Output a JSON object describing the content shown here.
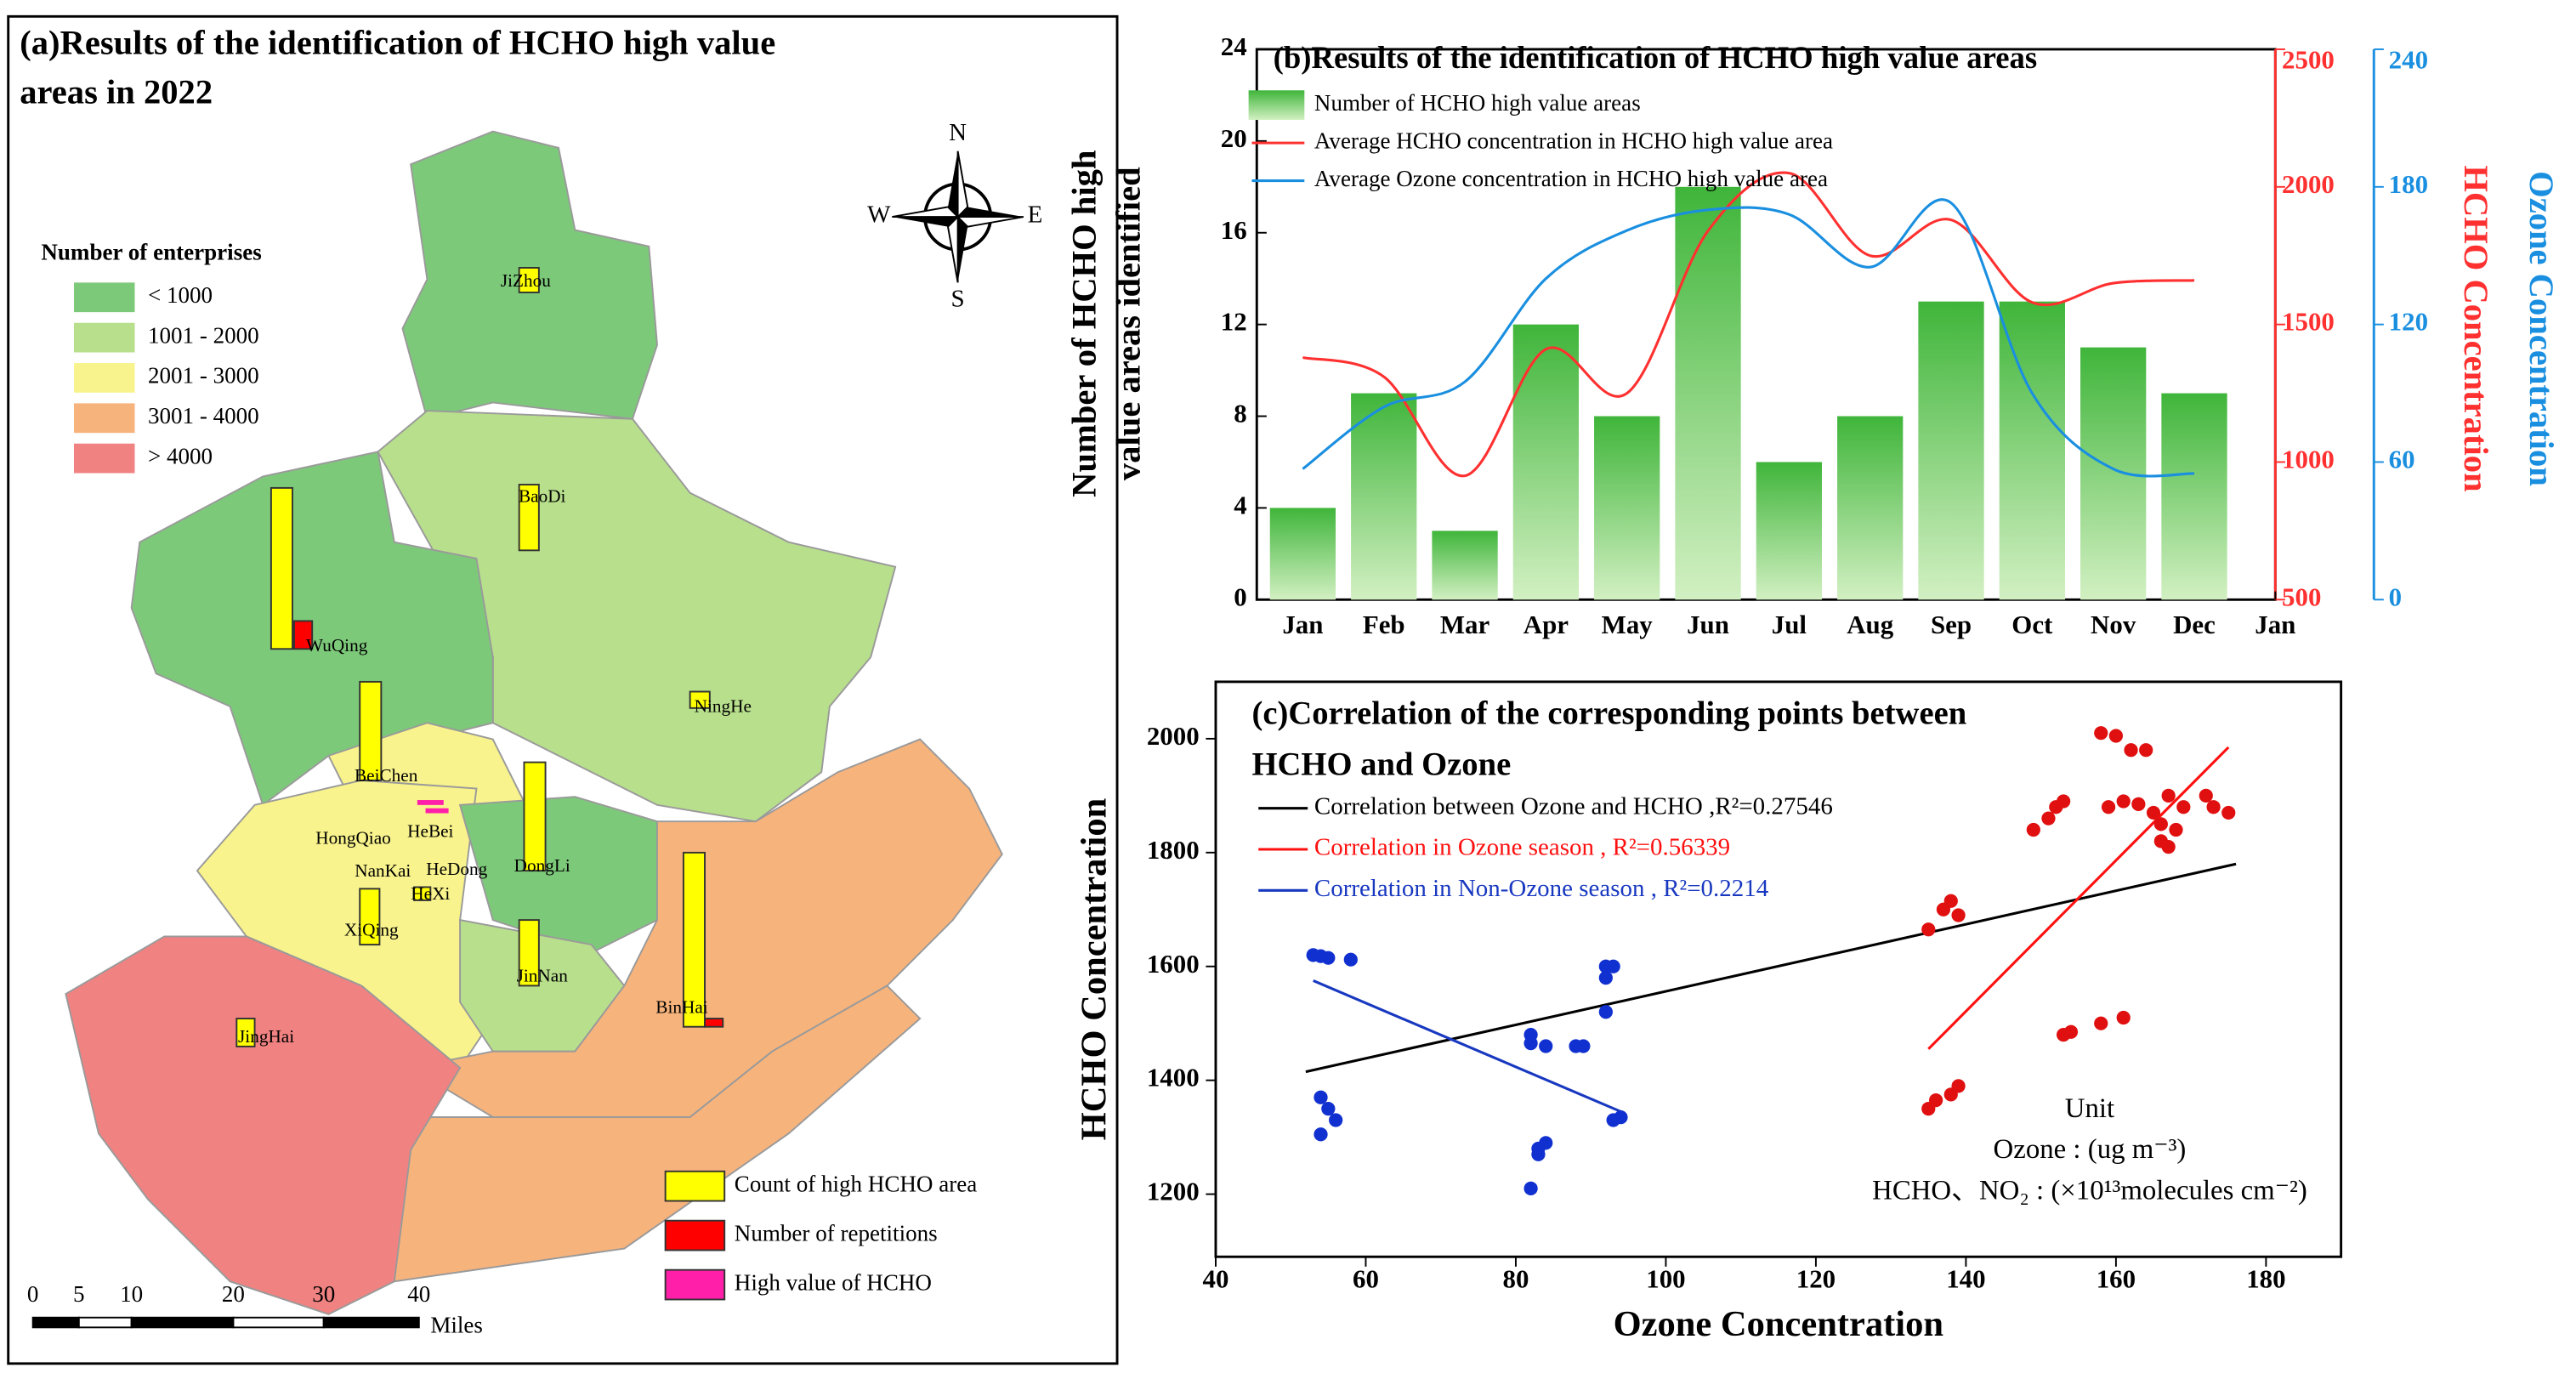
{
  "map": {
    "title_lines": [
      "(a)Results of the identification of HCHO high value",
      "areas in 2022"
    ],
    "legend_title": "Number of enterprises",
    "legend": [
      {
        "label": "< 1000",
        "color": "#7dc97a"
      },
      {
        "label": "1001 - 2000",
        "color": "#b8df8c"
      },
      {
        "label": "2001 - 3000",
        "color": "#f8f38c"
      },
      {
        "label": "3001 - 4000",
        "color": "#f7b37c"
      },
      {
        "label": "> 4000",
        "color": "#f08282"
      }
    ],
    "districts": [
      "JiZhou",
      "BaoDi",
      "WuQing",
      "NingHe",
      "BeiChen",
      "HongQiao",
      "HeBei",
      "NanKai",
      "HeDong",
      "HeXi",
      "DongLi",
      "XiQing",
      "JinNan",
      "BinHai",
      "JingHai"
    ],
    "compass": [
      "N",
      "W",
      "E",
      "S"
    ],
    "scale_labels": [
      0,
      5,
      10,
      20,
      30,
      40
    ],
    "scale_unit": "Miles",
    "symbols": [
      {
        "label": "Count of high HCHO area",
        "color": "#ffff00"
      },
      {
        "label": "Number of repetitions",
        "color": "#ff0000"
      },
      {
        "label": "High value of HCHO",
        "color": "#ff1fa8"
      }
    ]
  },
  "chart_data": [
    {
      "type": "bar",
      "title": "(b)Results of the identification of HCHO high value areas",
      "y_label_lines": [
        "Number of HCHO high",
        "value areas identified"
      ],
      "y2_label": "HCHO Concentration",
      "y3_label": "Ozone Concentration",
      "categories": [
        "Jan",
        "Feb",
        "Mar",
        "Apr",
        "May",
        "Jun",
        "Jul",
        "Aug",
        "Sep",
        "Oct",
        "Nov",
        "Dec",
        "Jan"
      ],
      "ylim": [
        0,
        24
      ],
      "yticks": [
        0,
        4,
        8,
        12,
        16,
        20,
        24
      ],
      "y2lim": [
        500,
        2500
      ],
      "y2ticks": [
        500,
        1000,
        1500,
        2000,
        2500
      ],
      "y3lim": [
        0,
        240
      ],
      "y3ticks": [
        0,
        60,
        120,
        180,
        240
      ],
      "series": [
        {
          "name": "Number of HCHO high value areas",
          "type": "bar",
          "color": "#52b946",
          "values": [
            4,
            9,
            3,
            12,
            8,
            18,
            6,
            8,
            13,
            13,
            11,
            9,
            null
          ]
        },
        {
          "name": "Average HCHO concentration in HCHO high value area",
          "type": "line",
          "axis": "y2",
          "color": "#ff3030",
          "values": [
            1380,
            1310,
            950,
            1410,
            1250,
            1840,
            2050,
            1750,
            1880,
            1580,
            1650,
            1660,
            null
          ]
        },
        {
          "name": "Average Ozone concentration in HCHO high value area",
          "type": "line",
          "axis": "y3",
          "color": "#1a8fe0",
          "values": [
            57,
            84,
            95,
            140,
            161,
            170,
            168,
            145,
            173,
            90,
            57,
            55,
            null
          ]
        }
      ]
    },
    {
      "type": "scatter",
      "title_lines": [
        "(c)Correlation of the corresponding points between",
        "HCHO and Ozone"
      ],
      "x_label": "Ozone Concentration",
      "y_label": "HCHO Concentration",
      "xlim": [
        40,
        190
      ],
      "xticks": [
        40,
        60,
        80,
        100,
        120,
        140,
        160,
        180
      ],
      "ylim": [
        1090,
        2100
      ],
      "yticks": [
        1200,
        1400,
        1600,
        1800,
        2000
      ],
      "series": [
        {
          "color": "#1030d0",
          "x": [
            53,
            54,
            55,
            58,
            54,
            55,
            56,
            54,
            82,
            82,
            84,
            88,
            89,
            92,
            93,
            92,
            92,
            83,
            84,
            83,
            82,
            93,
            94
          ],
          "y": [
            1620,
            1618,
            1615,
            1612,
            1370,
            1350,
            1330,
            1305,
            1480,
            1465,
            1460,
            1460,
            1460,
            1600,
            1600,
            1580,
            1520,
            1280,
            1290,
            1270,
            1210,
            1330,
            1335
          ]
        },
        {
          "color": "#e01010",
          "x": [
            135,
            137,
            138,
            139,
            135,
            136,
            138,
            139,
            149,
            151,
            152,
            153,
            153,
            154,
            158,
            161,
            158,
            160,
            162,
            164,
            159,
            161,
            163,
            165,
            166,
            167,
            168,
            167,
            169,
            172,
            173,
            175,
            166
          ],
          "y": [
            1665,
            1700,
            1715,
            1690,
            1350,
            1365,
            1375,
            1390,
            1840,
            1860,
            1880,
            1890,
            1480,
            1485,
            1500,
            1510,
            2010,
            2005,
            1980,
            1980,
            1880,
            1890,
            1885,
            1870,
            1850,
            1810,
            1840,
            1900,
            1880,
            1900,
            1880,
            1870,
            1820
          ]
        }
      ],
      "fits": [
        {
          "name": "Correlation between Ozone and HCHO ,R²=0.27546",
          "color": "#000000",
          "x": [
            52,
            176
          ],
          "y": [
            1415,
            1780
          ]
        },
        {
          "name": "Correlation in Ozone season , R²=0.56339",
          "color": "#ff1010",
          "x": [
            135,
            175
          ],
          "y": [
            1455,
            1985
          ]
        },
        {
          "name": "Correlation in Non-Ozone season , R²=0.2214",
          "color": "#1838c0",
          "x": [
            53,
            94
          ],
          "y": [
            1575,
            1345
          ]
        }
      ],
      "annotation_lines": [
        "Unit",
        "Ozone : (ug m⁻³)",
        "HCHO、NO₂ : (×10¹³molecules cm⁻²)"
      ]
    }
  ]
}
